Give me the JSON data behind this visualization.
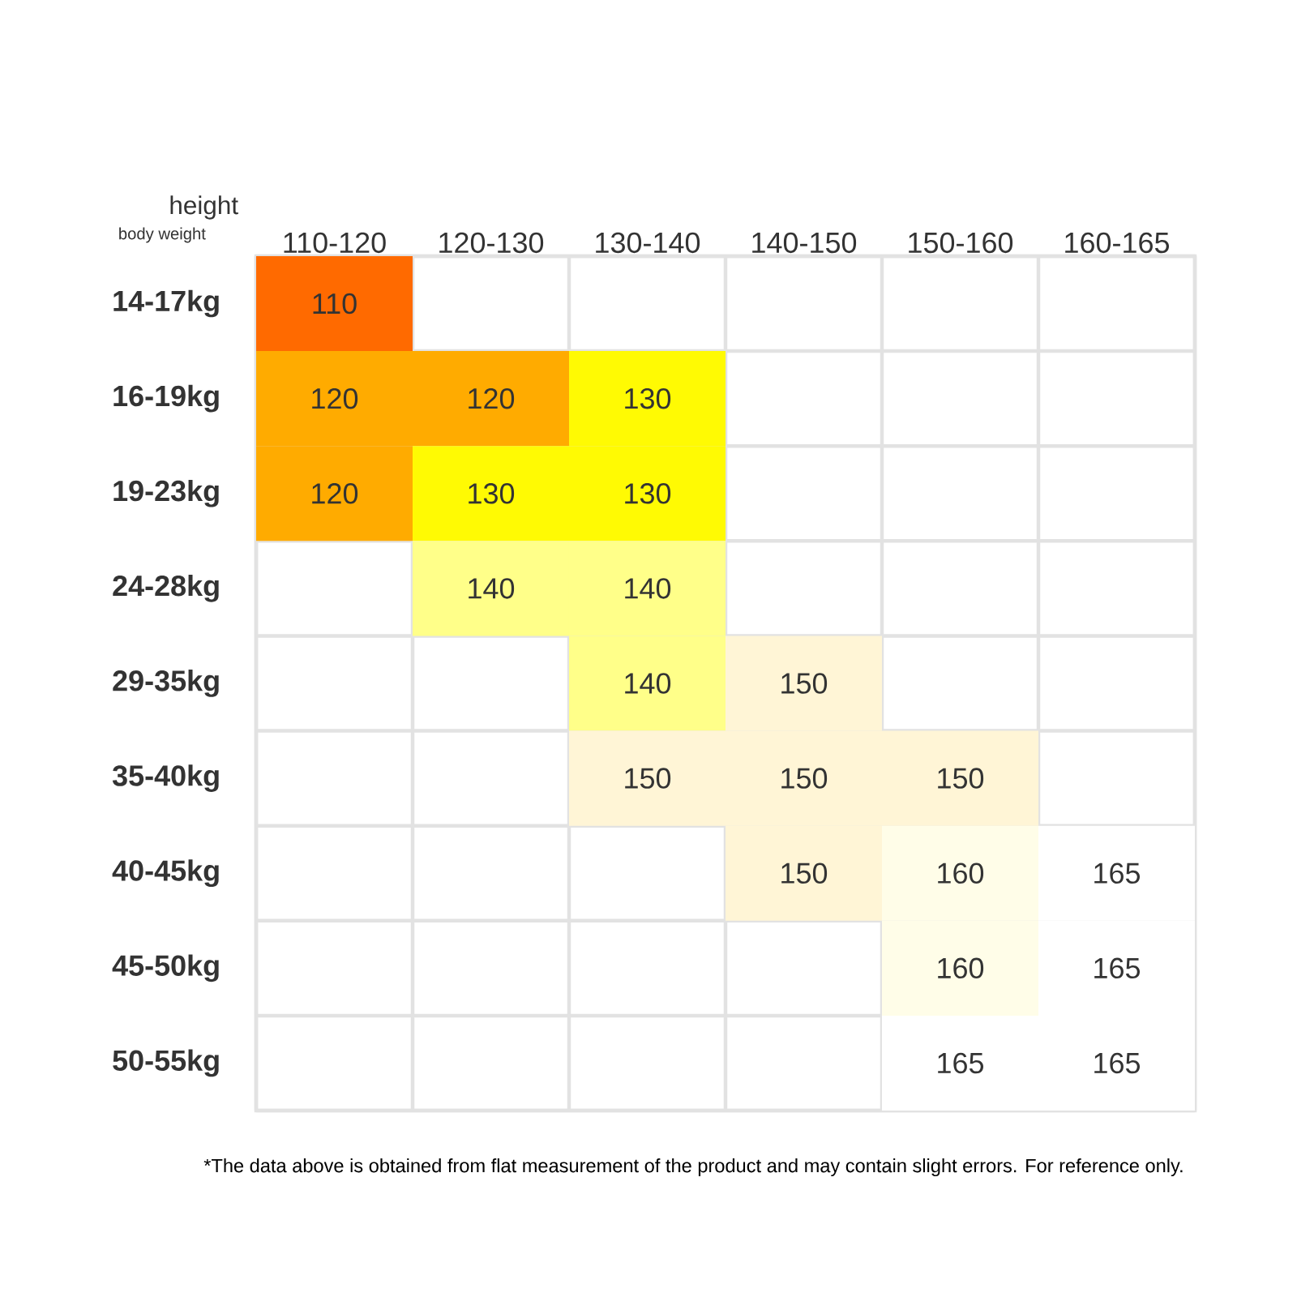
{
  "chart_data": {
    "type": "heatmap",
    "xlabel": "height",
    "ylabel": "body weight",
    "categories": [
      "110-120",
      "120-130",
      "130-140",
      "140-150",
      "150-160",
      "160-165"
    ],
    "y_categories": [
      "14-17kg",
      "16-19kg",
      "19-23kg",
      "24-28kg",
      "29-35kg",
      "35-40kg",
      "40-45kg",
      "45-50kg",
      "50-55kg"
    ],
    "cells": [
      [
        110,
        null,
        null,
        null,
        null,
        null
      ],
      [
        120,
        120,
        130,
        null,
        null,
        null
      ],
      [
        120,
        130,
        130,
        null,
        null,
        null
      ],
      [
        null,
        140,
        140,
        null,
        null,
        null
      ],
      [
        null,
        null,
        140,
        150,
        null,
        null
      ],
      [
        null,
        null,
        150,
        150,
        150,
        null
      ],
      [
        null,
        null,
        null,
        150,
        160,
        165
      ],
      [
        null,
        null,
        null,
        null,
        160,
        165
      ],
      [
        null,
        null,
        null,
        null,
        165,
        165
      ]
    ],
    "grid": true,
    "data_labels": true,
    "annotations": [
      "*The data above is obtained from flat measurement of the product and may contain slight errors. For reference only."
    ]
  }
}
